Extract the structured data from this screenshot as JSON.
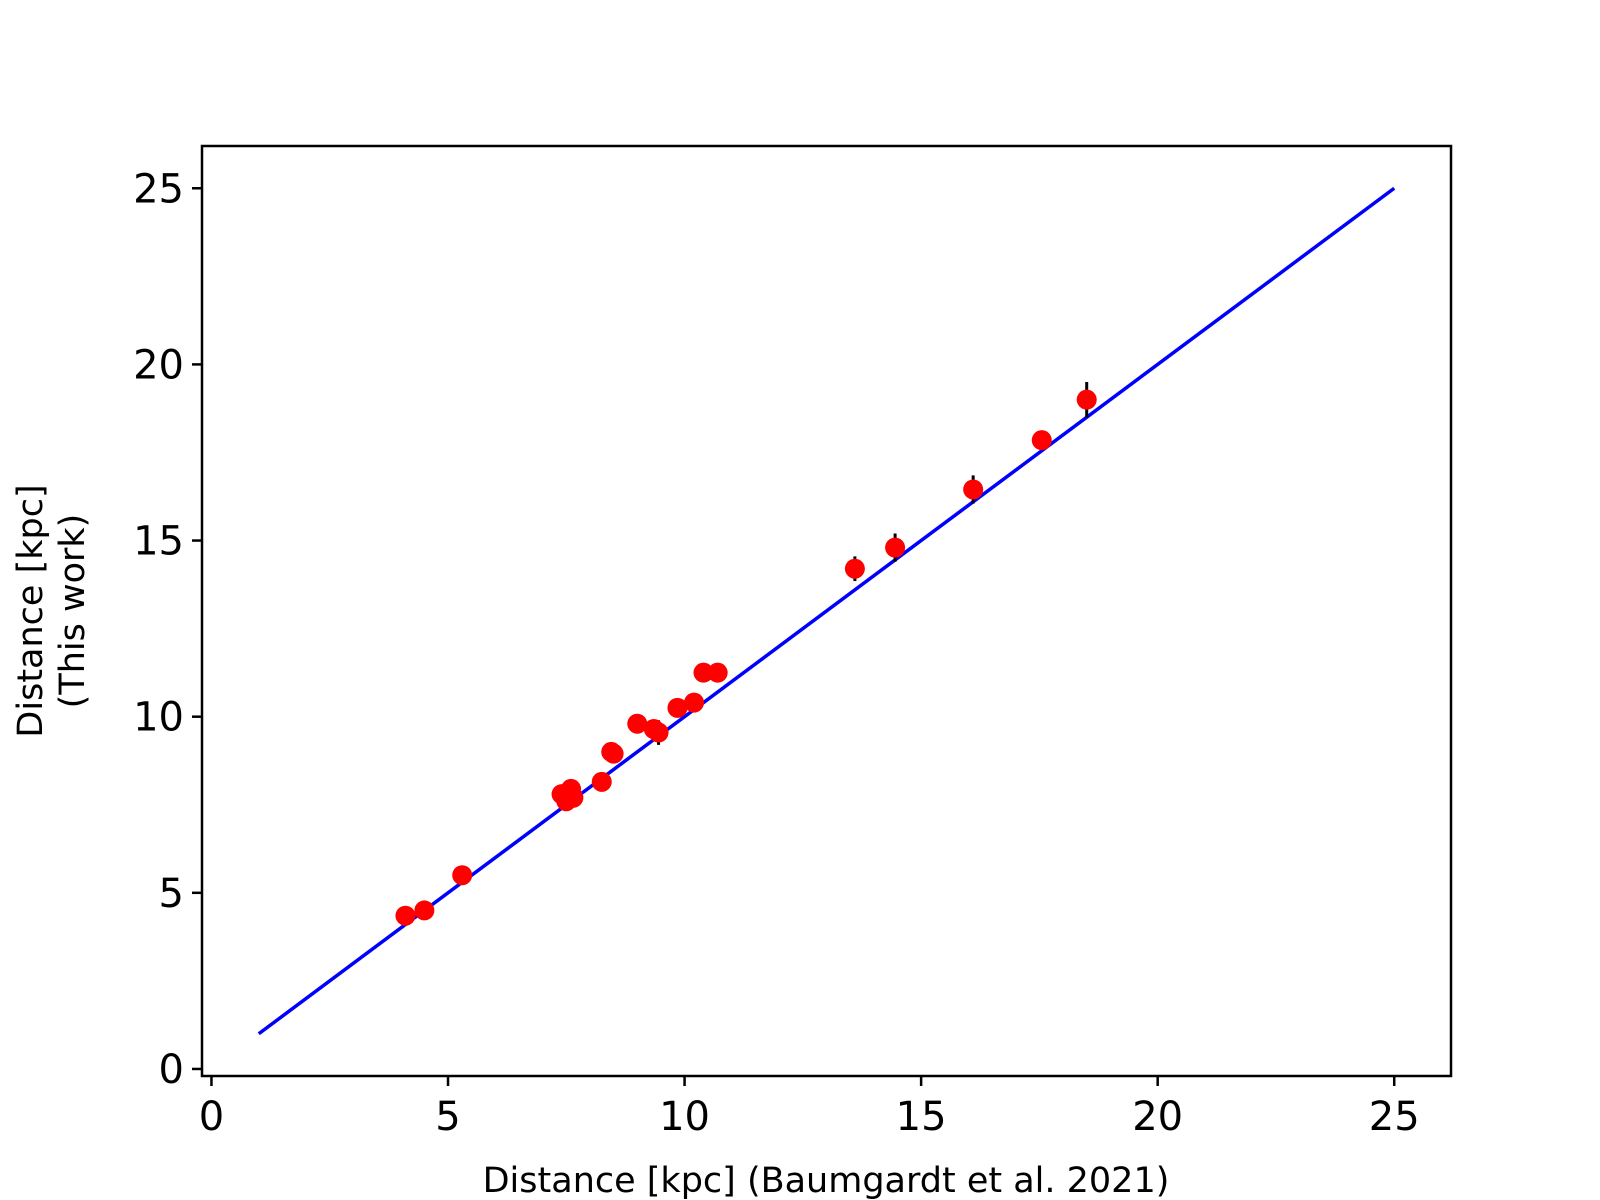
{
  "chart_data": {
    "type": "scatter",
    "title": "",
    "xlabel": "Distance [kpc] (Baumgardt et al. 2021)",
    "ylabel_lines": [
      "Distance [kpc]",
      "(This work)"
    ],
    "xlim": [
      -0.2,
      26.2
    ],
    "ylim": [
      -0.2,
      26.2
    ],
    "xticks": [
      0,
      5,
      10,
      15,
      20,
      25
    ],
    "yticks": [
      0,
      5,
      10,
      15,
      20,
      25
    ],
    "grid": false,
    "legend": "none",
    "reference_line": {
      "x": [
        1,
        25
      ],
      "y": [
        1,
        25
      ],
      "color": "#0000ff"
    },
    "marker_color": "#ff0000",
    "errorbar_color": "#000000",
    "points": [
      {
        "x": 4.1,
        "y": 4.35,
        "yerr": 0.1
      },
      {
        "x": 4.5,
        "y": 4.5,
        "yerr": 0.1
      },
      {
        "x": 5.3,
        "y": 5.5,
        "yerr": 0.12
      },
      {
        "x": 7.4,
        "y": 7.8,
        "yerr": 0.15
      },
      {
        "x": 7.5,
        "y": 7.6,
        "yerr": 0.15
      },
      {
        "x": 7.6,
        "y": 7.95,
        "yerr": 0.15
      },
      {
        "x": 7.65,
        "y": 7.7,
        "yerr": 0.15
      },
      {
        "x": 8.25,
        "y": 8.15,
        "yerr": 0.15
      },
      {
        "x": 8.45,
        "y": 9.0,
        "yerr": 0.2
      },
      {
        "x": 8.5,
        "y": 8.95,
        "yerr": 0.2
      },
      {
        "x": 9.0,
        "y": 9.8,
        "yerr": 0.15
      },
      {
        "x": 9.35,
        "y": 9.65,
        "yerr": 0.2
      },
      {
        "x": 9.45,
        "y": 9.55,
        "yerr": 0.35
      },
      {
        "x": 9.85,
        "y": 10.25,
        "yerr": 0.15
      },
      {
        "x": 10.2,
        "y": 10.4,
        "yerr": 0.15
      },
      {
        "x": 10.4,
        "y": 11.25,
        "yerr": 0.15
      },
      {
        "x": 10.7,
        "y": 11.25,
        "yerr": 0.2
      },
      {
        "x": 13.6,
        "y": 14.2,
        "yerr": 0.35
      },
      {
        "x": 14.45,
        "y": 14.8,
        "yerr": 0.4
      },
      {
        "x": 16.1,
        "y": 16.45,
        "yerr": 0.4
      },
      {
        "x": 17.55,
        "y": 17.85,
        "yerr": 0.2
      },
      {
        "x": 18.5,
        "y": 19.0,
        "yerr": 0.5
      }
    ]
  }
}
